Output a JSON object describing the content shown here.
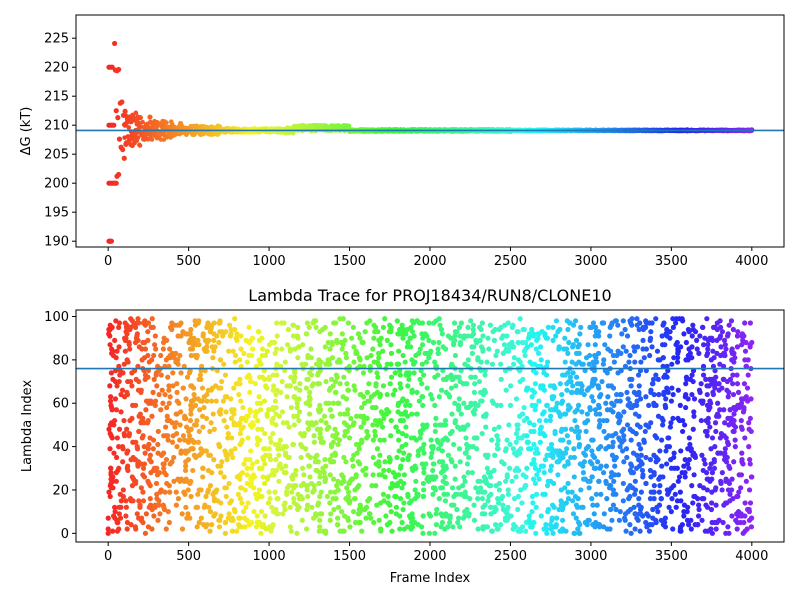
{
  "chart_data": [
    {
      "type": "scatter",
      "title": "",
      "xlabel": "",
      "ylabel": "ΔG (kT)",
      "xlim": [
        -200,
        4200
      ],
      "ylim": [
        189,
        229
      ],
      "x_ticks": [
        0,
        500,
        1000,
        1500,
        2000,
        2500,
        3000,
        3500,
        4000
      ],
      "y_ticks": [
        190,
        195,
        200,
        205,
        210,
        215,
        220,
        225
      ],
      "reference_line": 209.1,
      "reference_line_color": "#1f77b4",
      "colormap": "rainbow (red at frame 0 → violet at frame 4000)",
      "series": [
        {
          "points": [
            [
              5,
              190
            ],
            [
              10,
              190
            ],
            [
              15,
              190
            ],
            [
              20,
              190
            ],
            [
              5,
              200
            ],
            [
              15,
              200
            ],
            [
              25,
              200
            ],
            [
              35,
              200
            ],
            [
              45,
              200
            ],
            [
              50,
              200
            ],
            [
              5,
              210
            ],
            [
              15,
              210
            ],
            [
              25,
              210
            ],
            [
              35,
              210
            ],
            [
              5,
              220
            ],
            [
              15,
              220
            ],
            [
              25,
              220
            ],
            [
              40,
              224.1
            ],
            [
              45,
              219.5
            ],
            [
              55,
              219.4
            ],
            [
              65,
              219.6
            ],
            [
              55,
              201.2
            ],
            [
              65,
              201.5
            ],
            [
              50,
              212.5
            ],
            [
              60,
              211.3
            ],
            [
              70,
              207.6
            ],
            [
              75,
              213.8
            ],
            [
              80,
              206.2
            ],
            [
              85,
              214.0
            ],
            [
              90,
              205.8
            ],
            [
              95,
              211.7
            ],
            [
              100,
              204.3
            ],
            [
              105,
              212.4
            ],
            [
              110,
              206.7
            ],
            [
              120,
              211.0
            ],
            [
              130,
              207.3
            ],
            [
              140,
              210.6
            ],
            [
              150,
              206.5
            ],
            [
              160,
              210.9
            ],
            [
              170,
              207.4
            ],
            [
              180,
              210.2
            ],
            [
              200,
              211.3
            ],
            [
              230,
              208.4
            ],
            [
              260,
              211.4
            ],
            [
              300,
              208.6
            ],
            [
              350,
              210.6
            ],
            [
              400,
              208.2
            ],
            [
              450,
              210.3
            ],
            [
              500,
              209.0
            ],
            [
              550,
              209.8
            ],
            [
              600,
              209.7
            ],
            [
              700,
              209.2
            ],
            [
              800,
              208.9
            ],
            [
              900,
              209.3
            ],
            [
              1000,
              209.1
            ],
            [
              1100,
              209.3
            ],
            [
              1200,
              209.7
            ],
            [
              1300,
              209.9
            ],
            [
              1400,
              209.5
            ],
            [
              1500,
              209.2
            ],
            [
              1700,
              209.0
            ],
            [
              2000,
              209.0
            ],
            [
              2300,
              209.0
            ],
            [
              2500,
              208.9
            ],
            [
              2700,
              209.1
            ],
            [
              3000,
              209.1
            ],
            [
              3300,
              209.1
            ],
            [
              3600,
              209.2
            ],
            [
              4000,
              209.2
            ]
          ]
        }
      ]
    },
    {
      "type": "scatter",
      "title": "Lambda Trace for PROJ18434/RUN8/CLONE10",
      "xlabel": "Frame Index",
      "ylabel": "Lambda Index",
      "xlim": [
        -200,
        4200
      ],
      "ylim": [
        -4,
        103
      ],
      "x_ticks": [
        0,
        500,
        1000,
        1500,
        2000,
        2500,
        3000,
        3500,
        4000
      ],
      "y_ticks": [
        0,
        20,
        40,
        60,
        80,
        100
      ],
      "reference_line": 76,
      "reference_line_color": "#1f77b4",
      "colormap": "rainbow (red at frame 0 → violet at frame 4000)",
      "series": [
        {
          "points": [
            [
              0,
              2
            ],
            [
              0,
              0
            ],
            [
              5,
              19
            ],
            [
              5,
              48
            ],
            [
              10,
              68
            ],
            [
              10,
              91
            ],
            [
              15,
              30
            ],
            [
              20,
              74
            ],
            [
              25,
              95
            ],
            [
              30,
              21
            ],
            [
              35,
              50
            ],
            [
              40,
              12
            ],
            [
              45,
              62
            ],
            [
              50,
              28
            ],
            [
              55,
              84
            ],
            [
              60,
              5
            ],
            [
              65,
              40
            ],
            [
              70,
              97
            ],
            [
              75,
              18
            ],
            [
              80,
              56
            ],
            [
              90,
              33
            ],
            [
              100,
              78
            ],
            [
              110,
              8
            ],
            [
              120,
              64
            ],
            [
              130,
              45
            ],
            [
              140,
              99
            ],
            [
              150,
              26
            ],
            [
              170,
              88
            ],
            [
              190,
              15
            ],
            [
              210,
              52
            ],
            [
              230,
              71
            ],
            [
              250,
              3
            ],
            [
              280,
              95
            ],
            [
              310,
              37
            ],
            [
              340,
              60
            ],
            [
              380,
              22
            ],
            [
              420,
              83
            ],
            [
              460,
              9
            ],
            [
              500,
              47
            ],
            [
              540,
              98
            ],
            [
              590,
              30
            ],
            [
              640,
              66
            ],
            [
              700,
              14
            ],
            [
              760,
              91
            ],
            [
              820,
              41
            ],
            [
              880,
              72
            ],
            [
              940,
              5
            ],
            [
              1000,
              57
            ],
            [
              1060,
              36
            ],
            [
              1120,
              94
            ],
            [
              1180,
              18
            ],
            [
              1250,
              63
            ],
            [
              1310,
              80
            ],
            [
              1380,
              27
            ],
            [
              1440,
              99
            ],
            [
              1500,
              44
            ],
            [
              1560,
              11
            ],
            [
              1620,
              69
            ],
            [
              1690,
              87
            ],
            [
              1750,
              33
            ],
            [
              1820,
              55
            ],
            [
              1880,
              7
            ],
            [
              1950,
              92
            ],
            [
              2010,
              40
            ],
            [
              2080,
              75
            ],
            [
              2140,
              21
            ],
            [
              2210,
              60
            ],
            [
              2270,
              96
            ],
            [
              2340,
              3
            ],
            [
              2400,
              48
            ],
            [
              2470,
              84
            ],
            [
              2530,
              29
            ],
            [
              2600,
              66
            ],
            [
              2660,
              12
            ],
            [
              2730,
              90
            ],
            [
              2790,
              38
            ],
            [
              2860,
              57
            ],
            [
              2920,
              2
            ],
            [
              2990,
              78
            ],
            [
              3050,
              24
            ],
            [
              3120,
              95
            ],
            [
              3180,
              43
            ],
            [
              3250,
              68
            ],
            [
              3310,
              9
            ],
            [
              3380,
              86
            ],
            [
              3440,
              31
            ],
            [
              3510,
              53
            ],
            [
              3570,
              98
            ],
            [
              3640,
              17
            ],
            [
              3700,
              73
            ],
            [
              3770,
              40
            ],
            [
              3830,
              89
            ],
            [
              3900,
              6
            ],
            [
              3950,
              62
            ],
            [
              4000,
              26
            ]
          ]
        }
      ]
    }
  ]
}
